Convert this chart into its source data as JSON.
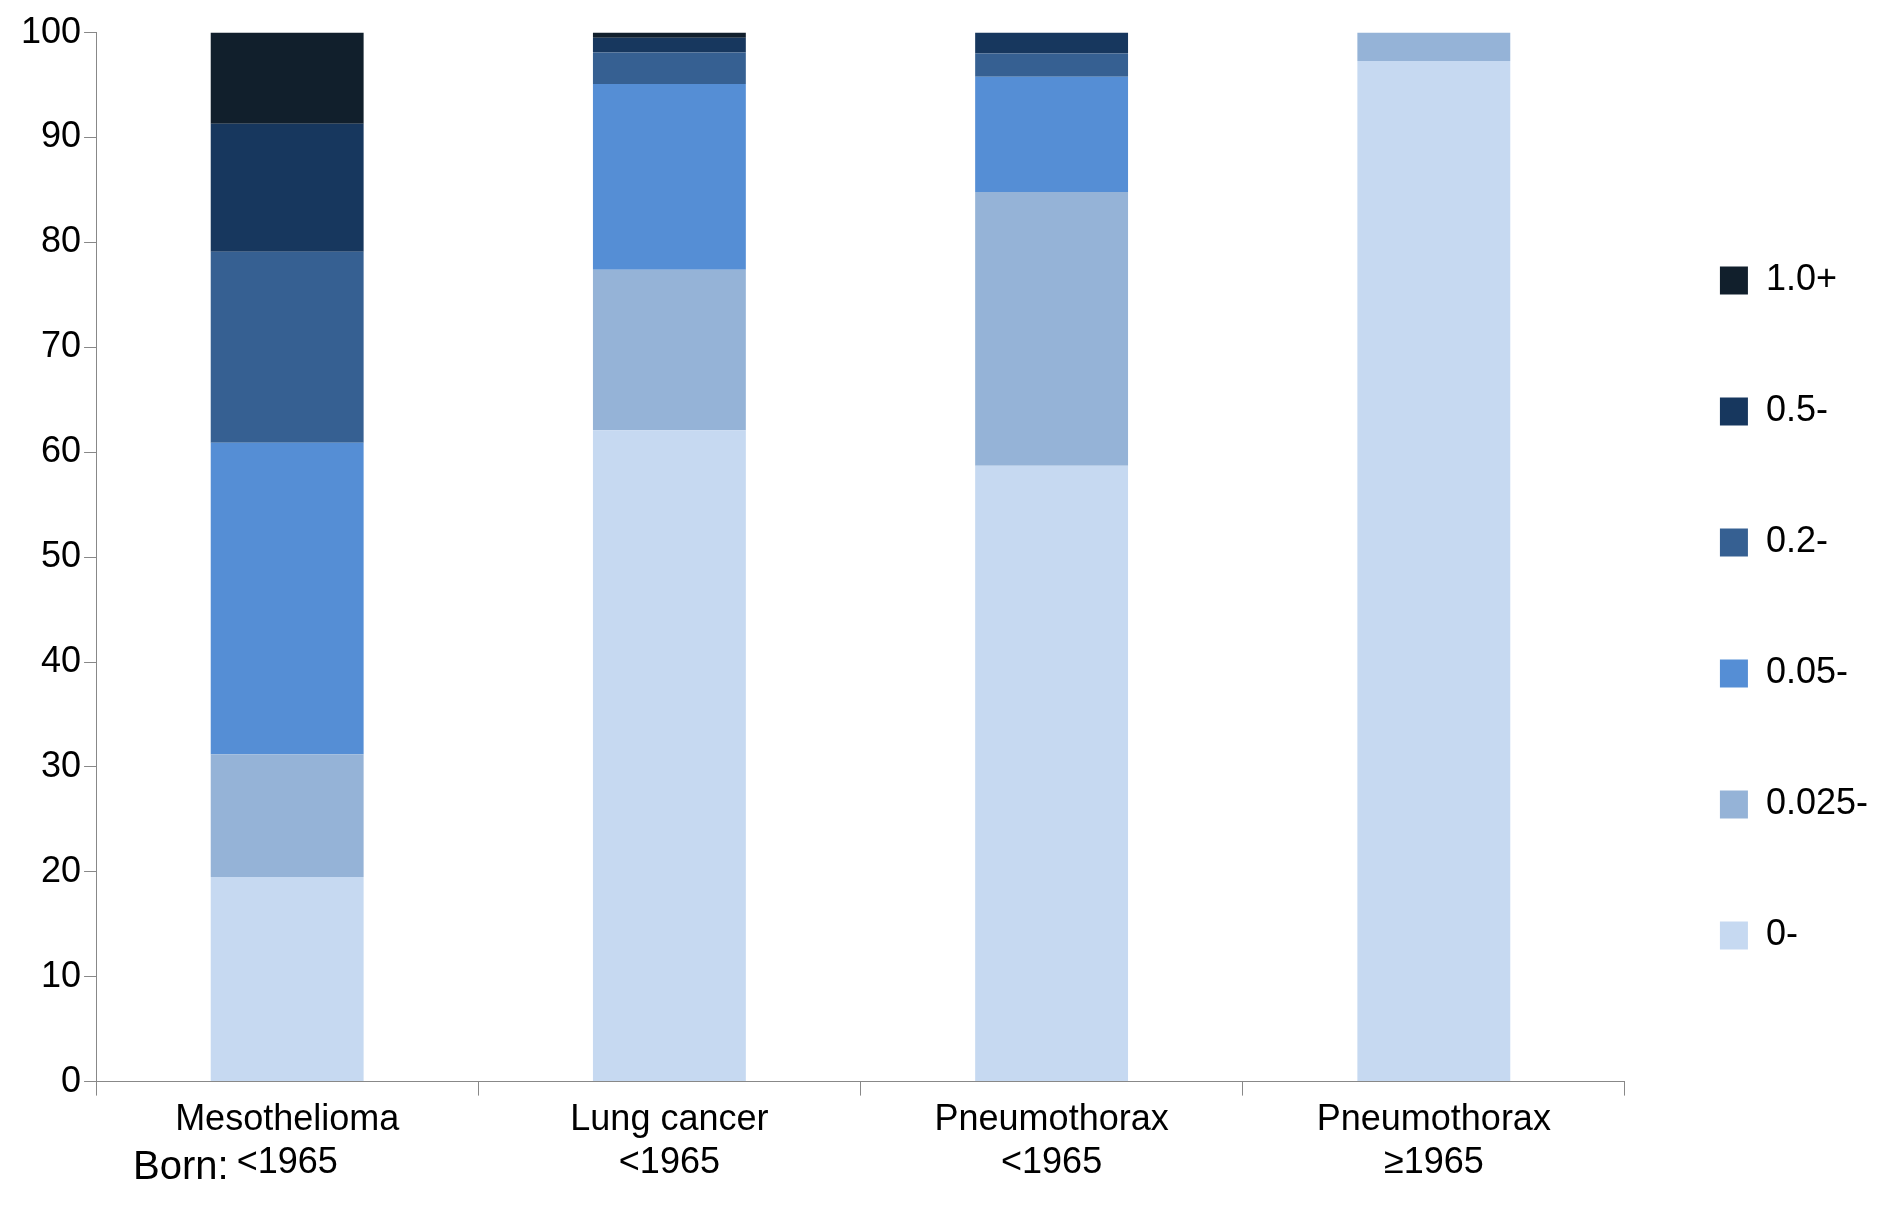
{
  "chart_data": {
    "type": "bar",
    "stacked": true,
    "categories": [
      "Mesothelioma\n<1965",
      "Lung cancer\n<1965",
      "Pneumothorax\n<1965",
      "Pneumothorax\n≥1965"
    ],
    "series": [
      {
        "name": "0-",
        "color": "#c6d9f1",
        "values": [
          19.5,
          62.1,
          58.7,
          97.3
        ]
      },
      {
        "name": "0.025-",
        "color": "#95b3d7",
        "values": [
          11.7,
          15.3,
          26.1,
          2.7
        ]
      },
      {
        "name": "0.05-",
        "color": "#558ed5",
        "values": [
          29.7,
          17.7,
          11.0,
          0
        ]
      },
      {
        "name": "0.2-",
        "color": "#366092",
        "values": [
          18.2,
          3.0,
          2.2,
          0
        ]
      },
      {
        "name": "0.5-",
        "color": "#17375e",
        "values": [
          12.2,
          1.4,
          2.0,
          0
        ]
      },
      {
        "name": "1.0+",
        "color": "#111f2c",
        "values": [
          8.7,
          0.5,
          0,
          0
        ]
      }
    ],
    "ylim": [
      0,
      100
    ],
    "yticks": [
      0,
      10,
      20,
      30,
      40,
      50,
      60,
      70,
      80,
      90,
      100
    ],
    "grid": false,
    "legend": "right",
    "annotations": [
      "Born:"
    ]
  }
}
